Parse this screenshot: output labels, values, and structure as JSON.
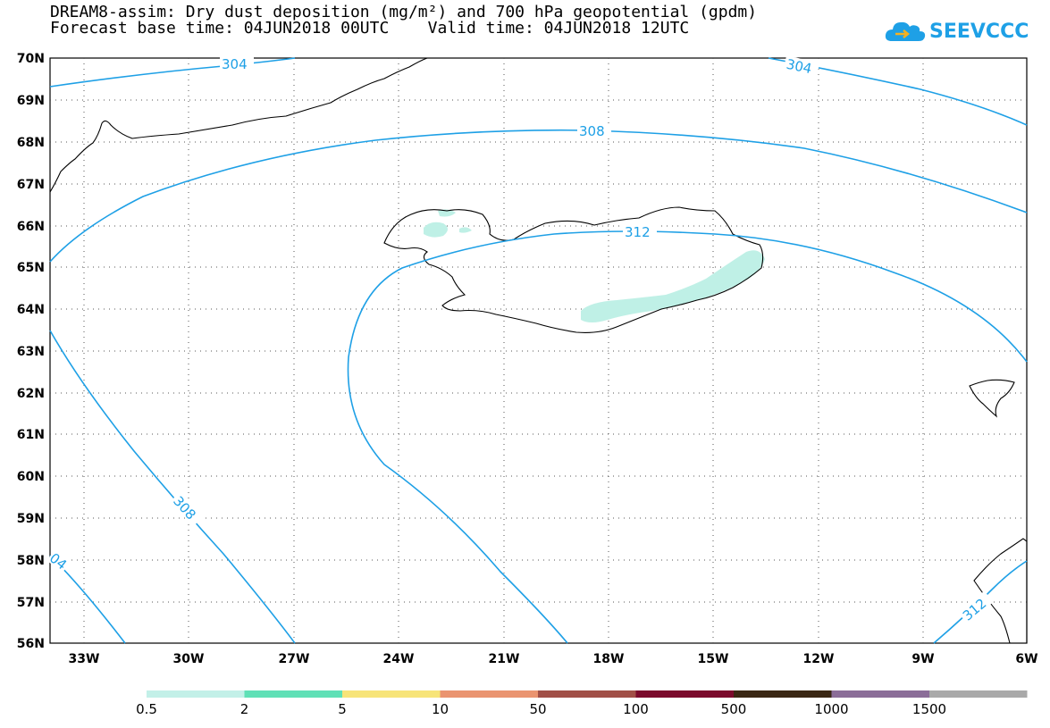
{
  "title": {
    "line1": "DREAM8-assim: Dry dust deposition (mg/m²) and 700 hPa geopotential (gpdm)",
    "line2": "Forecast base time: 04JUN2018 00UTC    Valid time: 04JUN2018 12UTC"
  },
  "logo": {
    "text": "SEEVCCC",
    "icon": "cloud-icon",
    "color": "#1ea0e6"
  },
  "map": {
    "lon_range": [
      -34.4,
      -6.0
    ],
    "lat_range": [
      56,
      70
    ],
    "lat_ticks": [
      "70N",
      "69N",
      "68N",
      "67N",
      "66N",
      "65N",
      "64N",
      "63N",
      "62N",
      "61N",
      "60N",
      "59N",
      "58N",
      "57N",
      "56N"
    ],
    "lon_ticks": [
      "33W",
      "30W",
      "27W",
      "24W",
      "21W",
      "18W",
      "15W",
      "12W",
      "9W",
      "6W"
    ],
    "gridlines": "dotted",
    "contour_color": "#1ea0e6",
    "contour_labels": [
      "304",
      "304",
      "308",
      "312",
      "308",
      "04",
      "312"
    ],
    "dust_color": "#bff0e6"
  },
  "colorbar": {
    "colors": [
      "#c3f0e8",
      "#5fe0b6",
      "#f7e479",
      "#ea9470",
      "#a14f47",
      "#7b0a2c",
      "#3a2713",
      "#8b6d98",
      "#a9a9a9"
    ],
    "labels": [
      "0.5",
      "2",
      "5",
      "10",
      "50",
      "100",
      "500",
      "1000",
      "1500"
    ]
  }
}
